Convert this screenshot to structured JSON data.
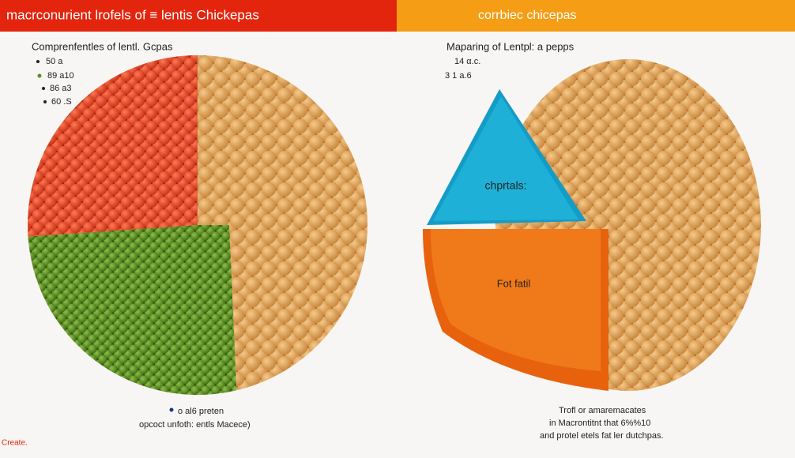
{
  "header": {
    "left_title": "macrconurient lrofels of ≡ lentis Chickepas",
    "right_title": "corrbiec chicepas"
  },
  "left_panel": {
    "subtitle": "Comprenfentles of lentl. Gcpas",
    "legend": [
      "50 a",
      "89 a10",
      "86 a3",
      "60 .S"
    ],
    "caption": [
      "o al6 preten",
      "opcoct unfoth: entls Macece)"
    ]
  },
  "right_panel": {
    "subtitle": "Maparing of Lentpl: a pepps",
    "legend": [
      "14 α.c.",
      "3 1 a.6"
    ],
    "slice_labels": [
      "chprtals:",
      "Fot fatil"
    ],
    "caption": [
      "Trofl or amaremacates",
      "in Macrontitnt that 6%%10",
      "and protel etels fat ler dutchpas."
    ]
  },
  "footer": {
    "note": "Create."
  }
}
